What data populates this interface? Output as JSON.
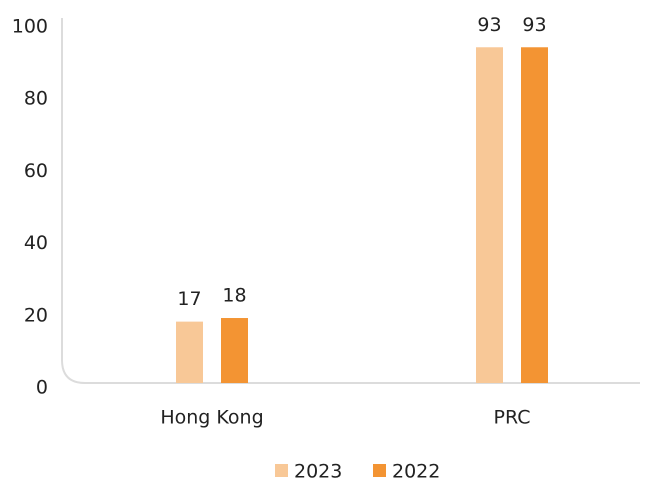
{
  "chart_data": {
    "type": "bar",
    "categories": [
      "Hong Kong",
      "PRC"
    ],
    "series": [
      {
        "name": "2023",
        "color": "#f8c897",
        "values": [
          17,
          93
        ]
      },
      {
        "name": "2022",
        "color": "#f39433",
        "values": [
          18,
          93
        ]
      }
    ],
    "ylim": [
      0,
      100
    ],
    "yticks": [
      0,
      20,
      40,
      60,
      80,
      100
    ],
    "grid": false,
    "legend": "bottom"
  }
}
